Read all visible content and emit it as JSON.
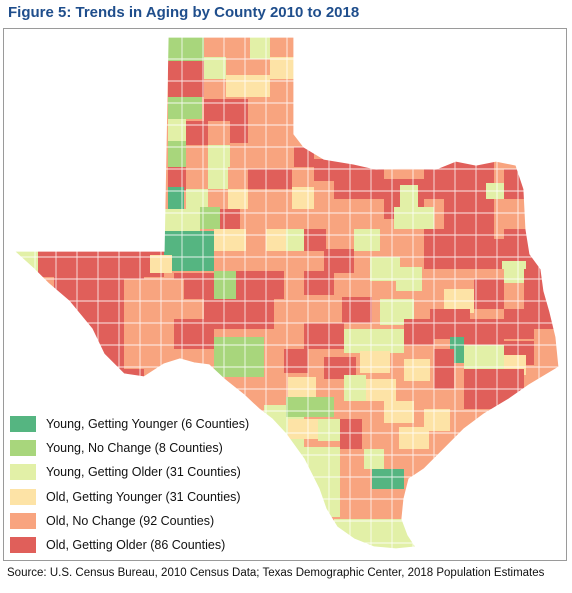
{
  "title": "Figure 5: Trends in Aging by County 2010 to 2018",
  "legend": [
    {
      "label": "Young, Getting Younger (6 Counties)",
      "color": "#55b581"
    },
    {
      "label": "Young, No Change (8 Counties)",
      "color": "#a8d67c"
    },
    {
      "label": "Young, Getting Older (31 Counties)",
      "color": "#e2f0a7"
    },
    {
      "label": "Old, Getting Younger (31 Counties)",
      "color": "#fde3a6"
    },
    {
      "label": "Old, No Change (92 Counties)",
      "color": "#f8a47f"
    },
    {
      "label": "Old, Getting Older (86 Counties)",
      "color": "#e05f5a"
    }
  ],
  "source": "Source: U.S. Census Bureau, 2010 Census Data; Texas Demographic Center, 2018 Population Estimates"
}
